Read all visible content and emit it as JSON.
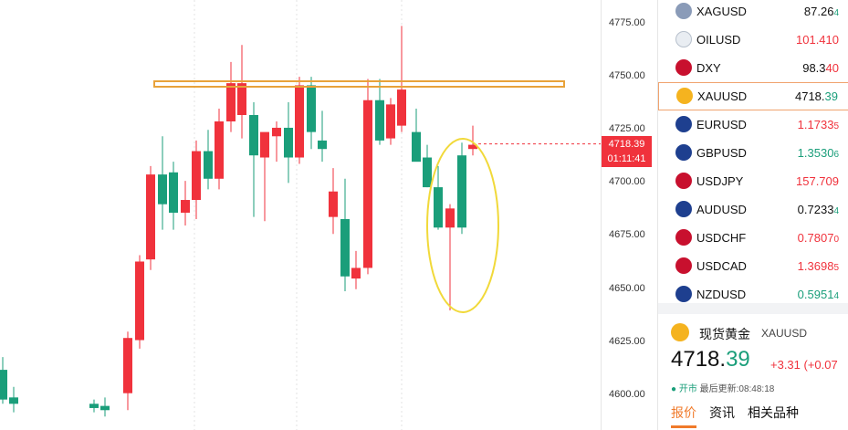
{
  "chart": {
    "price_levels": [
      "4775.00",
      "4750.00",
      "4725.00",
      "4700.00",
      "4675.00",
      "4650.00",
      "4625.00",
      "4600.00"
    ],
    "current_price": "4718.39",
    "countdown": "01:11:41",
    "colors": {
      "up": "#1a9e7a",
      "down": "#f0323c",
      "resistance_band": "#e8a23a",
      "highlight_ellipse": "#f1d93a"
    }
  },
  "watchlist": {
    "items": [
      {
        "symbol": "XAGUSD",
        "price_main": "87.26",
        "price_tail": "4",
        "trend": "neutral",
        "flag": "silver-icon"
      },
      {
        "symbol": "OILUSD",
        "price_main": "101.410",
        "price_tail": "",
        "trend": "down",
        "flag": "oil-icon"
      },
      {
        "symbol": "DXY",
        "price_main": "98.3",
        "price_tail": "40",
        "trend": "neutral",
        "flag": "us-flag-icon"
      },
      {
        "symbol": "XAUUSD",
        "price_main": "4718.",
        "price_tail": "39",
        "trend": "neutral",
        "flag": "gold-icon",
        "selected": true
      },
      {
        "symbol": "EURUSD",
        "price_main": "1.1733",
        "price_tail": "5",
        "trend": "down",
        "flag": "eu-flag-icon"
      },
      {
        "symbol": "GBPUSD",
        "price_main": "1.3530",
        "price_tail": "6",
        "trend": "up",
        "flag": "uk-flag-icon"
      },
      {
        "symbol": "USDJPY",
        "price_main": "157.709",
        "price_tail": "",
        "trend": "down",
        "flag": "us-flag-icon"
      },
      {
        "symbol": "AUDUSD",
        "price_main": "0.7233",
        "price_tail": "4",
        "trend": "neutral",
        "flag": "au-flag-icon"
      },
      {
        "symbol": "USDCHF",
        "price_main": "0.7807",
        "price_tail": "0",
        "trend": "down",
        "flag": "us-flag-icon"
      },
      {
        "symbol": "USDCAD",
        "price_main": "1.3698",
        "price_tail": "5",
        "trend": "down",
        "flag": "us-flag-icon"
      },
      {
        "symbol": "NZDUSD",
        "price_main": "0.5951",
        "price_tail": "4",
        "trend": "up",
        "flag": "nz-flag-icon"
      }
    ]
  },
  "detail": {
    "name": "现货黄金",
    "code": "XAUUSD",
    "price_int": "4718.",
    "price_dec": "39",
    "change": "+3.31 (+0.07",
    "status_open": "● 开市",
    "last_update": "最后更新:08:48:18",
    "tabs": [
      "报价",
      "资讯",
      "相关品种"
    ]
  }
}
